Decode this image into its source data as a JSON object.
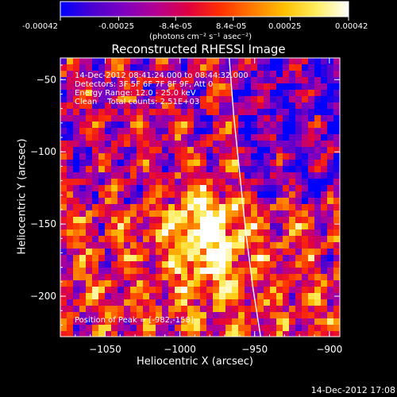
{
  "colorbar": {
    "ticks": [
      "-0.00042",
      "-0.00025",
      "-8.4e-05",
      "8.4e-05",
      "0.00025",
      "0.00042"
    ],
    "tick_values": [
      -0.00042,
      -0.00025,
      -8.4e-05,
      8.4e-05,
      0.00025,
      0.00042
    ],
    "range": [
      -0.00042,
      0.00042
    ],
    "unit_label": "(photons cm⁻² s⁻¹ asec⁻²)",
    "colors": [
      "#0000ff",
      "#4a00d0",
      "#8000c0",
      "#b40090",
      "#e00040",
      "#ff3000",
      "#ff7a00",
      "#ffc000",
      "#ffee60",
      "#ffffff"
    ]
  },
  "chart_data": {
    "type": "heatmap",
    "title": "Reconstructed RHESSI Image",
    "xlabel": "Heliocentric X (arcsec)",
    "ylabel": "Heliocentric Y (arcsec)",
    "xlim": [
      -1080,
      -893
    ],
    "ylim": [
      -228,
      -35
    ],
    "x_ticks": [
      -1050,
      -1000,
      -950,
      -900
    ],
    "y_ticks": [
      -50,
      -100,
      -150,
      -200
    ],
    "annotations": [
      "14-Dec-2012 08:41:24.000 to 08:44:32.000",
      "Detectors: 3F 5F 6F 7F 8F 9F, Att 0",
      "Energy Range: 12.0 - 25.0 keV",
      "Clean    Total counts: 2.51E+03"
    ],
    "peak_label": "Position of Peak = [-982,-158]",
    "peak": [
      -982,
      -158
    ],
    "limb_curve": {
      "x": [
        -967,
        -964,
        -960,
        -956,
        -951,
        -946
      ],
      "y": [
        -35,
        -75,
        -115,
        -155,
        -195,
        -228
      ]
    },
    "grid": false
  },
  "footer": {
    "timestamp": "14-Dec-2012 17:08"
  }
}
